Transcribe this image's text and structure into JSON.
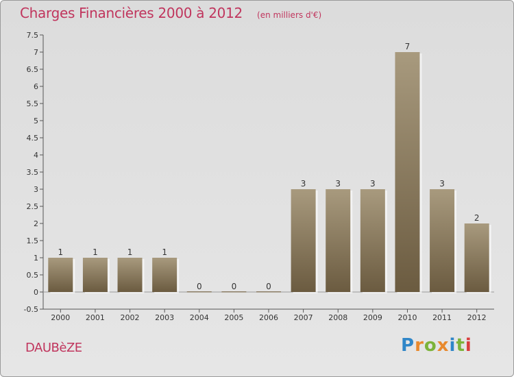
{
  "title": "Charges Financières 2000 à 2012",
  "subtitle": "(en milliers d'€)",
  "commune": "DAUBèZE",
  "logo": {
    "letters": [
      "P",
      "r",
      "o",
      "x",
      "i",
      "t",
      "i"
    ],
    "colors": [
      "#2f86c8",
      "#e8892d",
      "#7cb33a",
      "#e8892d",
      "#2f86c8",
      "#7cb33a",
      "#d93d3d"
    ]
  },
  "colors": {
    "bar_top": "#a89a7e",
    "bar_bottom": "#6b5b40",
    "text": "#333333",
    "accent": "#c0355d"
  },
  "chart_data": {
    "type": "bar",
    "categories": [
      "2000",
      "2001",
      "2002",
      "2003",
      "2004",
      "2005",
      "2006",
      "2007",
      "2008",
      "2009",
      "2010",
      "2011",
      "2012"
    ],
    "values": [
      1,
      1,
      1,
      1,
      0,
      0,
      0,
      3,
      3,
      3,
      7,
      3,
      2
    ],
    "data_labels": [
      "1",
      "1",
      "1",
      "1",
      "0",
      "0",
      "0",
      "3",
      "3",
      "3",
      "7",
      "3",
      "2"
    ],
    "yticks": [
      "-0.5",
      "0",
      "0.5",
      "1",
      "1.5",
      "2",
      "2.5",
      "3",
      "3.5",
      "4",
      "4.5",
      "5",
      "5.5",
      "6",
      "6.5",
      "7",
      "7.5"
    ],
    "ylim": [
      -0.5,
      7.5
    ],
    "grid": false
  }
}
